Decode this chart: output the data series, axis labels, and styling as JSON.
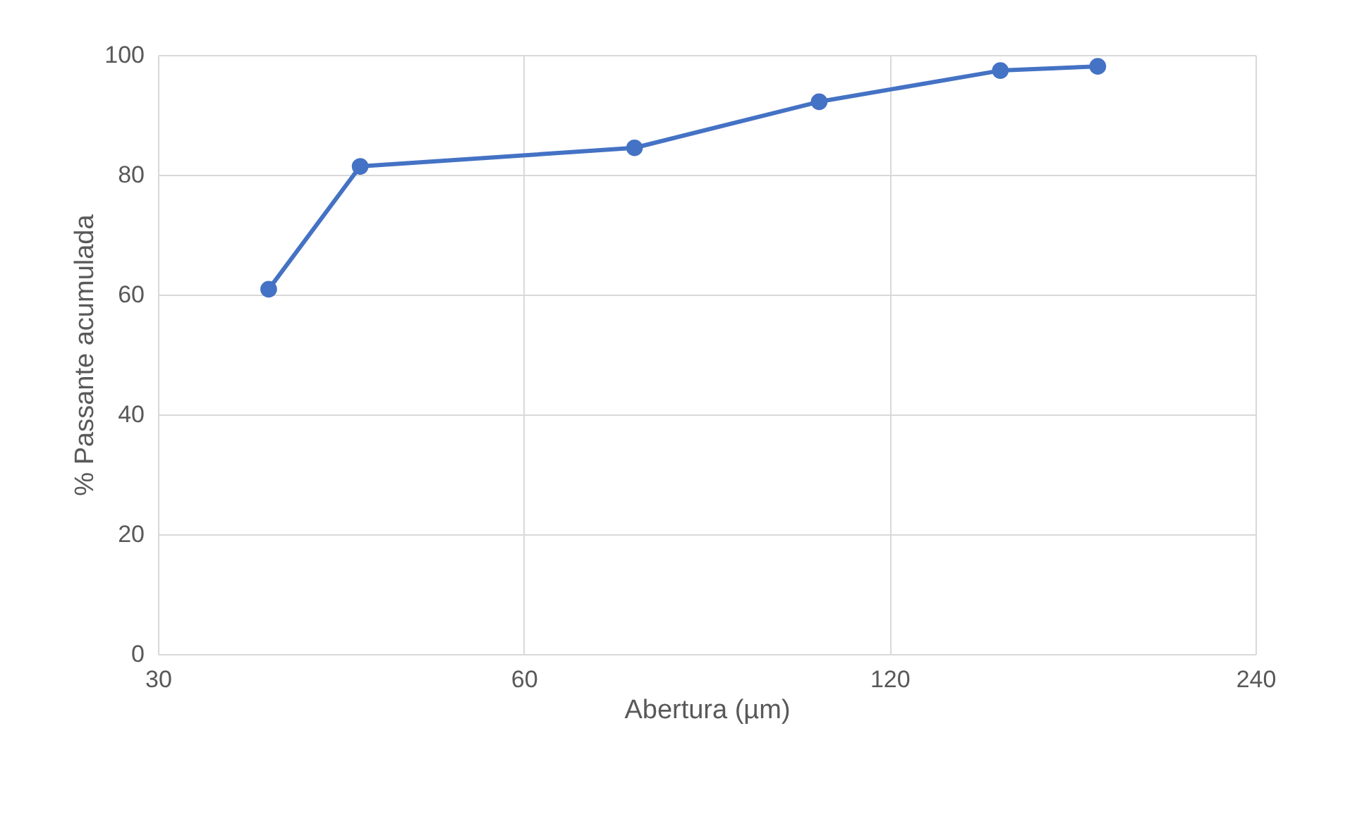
{
  "chart_data": {
    "type": "line",
    "xlabel": "Abertura (µm)",
    "ylabel": "% Passante acumulada",
    "x": [
      37,
      44,
      74,
      105,
      148,
      178
    ],
    "series": [
      {
        "color": "#4472c4",
        "values": [
          60.9,
          81.4,
          84.5,
          92.2,
          97.4,
          98.1
        ]
      }
    ],
    "xlim": [
      30,
      240
    ],
    "xticks": [
      30,
      60,
      120,
      240
    ],
    "ylim": [
      0,
      100
    ],
    "yticks": [
      0,
      20,
      40,
      60,
      80,
      100
    ],
    "log": "x",
    "grid": true,
    "legend": false,
    "marker": "circle",
    "line_style": "solid"
  }
}
